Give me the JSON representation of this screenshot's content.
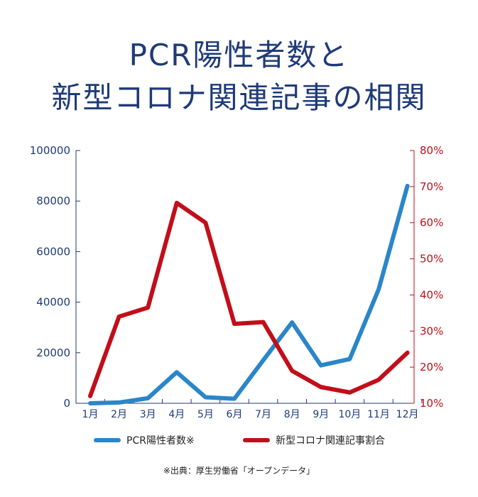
{
  "title_line1": "PCR陽性者数と",
  "title_line2": "新型コロナ関連記事の相関",
  "source_note": "※出典：厚生労働省「オープンデータ」",
  "colors": {
    "title": "#1e3a78",
    "pcr": "#2a86c8",
    "articles": "#c20e1a"
  },
  "chart_data": {
    "type": "line",
    "categories": [
      "1月",
      "2月",
      "3月",
      "4月",
      "5月",
      "6月",
      "7月",
      "8月",
      "9月",
      "10月",
      "11月",
      "12月"
    ],
    "series": [
      {
        "name": "PCR陽性者数※",
        "axis": "left",
        "values": [
          0,
          300,
          2000,
          12300,
          2400,
          1800,
          17000,
          32000,
          15000,
          17500,
          45000,
          86000
        ]
      },
      {
        "name": "新型コロナ関連記事割合",
        "axis": "right",
        "values": [
          12,
          34,
          36.5,
          65.5,
          60,
          32,
          32.5,
          19,
          14.5,
          13,
          16.5,
          24
        ]
      }
    ],
    "y_left": {
      "min": 0,
      "max": 100000,
      "ticks": [
        "0",
        "20000",
        "40000",
        "60000",
        "80000",
        "100000"
      ]
    },
    "y_right": {
      "min": 10,
      "max": 80,
      "ticks": [
        "10%",
        "20%",
        "30%",
        "40%",
        "50%",
        "60%",
        "70%",
        "80%"
      ]
    },
    "grid": false,
    "legend_position": "bottom"
  }
}
